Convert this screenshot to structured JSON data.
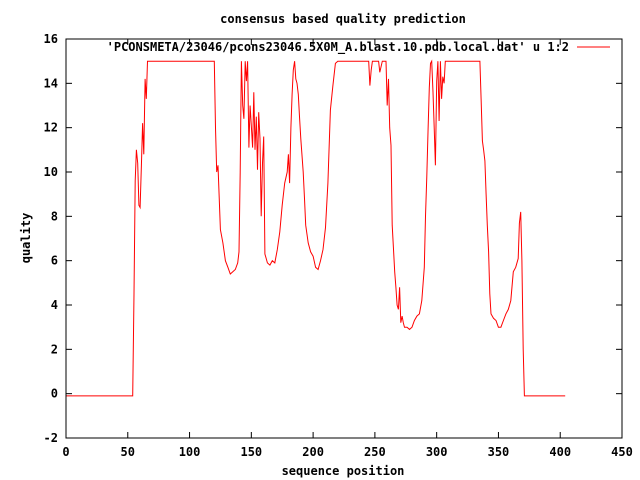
{
  "chart_data": {
    "type": "line",
    "title": "consensus based quality prediction",
    "xlabel": "sequence position",
    "ylabel": "quality",
    "xlim": [
      0,
      450
    ],
    "ylim": [
      -2,
      16
    ],
    "xticks": [
      "0",
      "50",
      "100",
      "150",
      "200",
      "250",
      "300",
      "350",
      "400",
      "450"
    ],
    "yticks": [
      "-2",
      "0",
      "2",
      "4",
      "6",
      "8",
      "10",
      "12",
      "14",
      "16"
    ],
    "grid": false,
    "legend_position": "top-right",
    "series": [
      {
        "name": "'PCONSMETA/23046/pcons23046.5X0M_A.blast.10.pdb.local.dat' u 1:2",
        "color": "#ff0000",
        "points": [
          [
            0,
            -0.1
          ],
          [
            54,
            -0.1
          ],
          [
            55,
            4.5
          ],
          [
            56,
            9.6
          ],
          [
            57,
            11.0
          ],
          [
            58,
            10.4
          ],
          [
            59,
            8.5
          ],
          [
            60,
            8.4
          ],
          [
            61,
            10.3
          ],
          [
            62,
            12.2
          ],
          [
            63,
            10.8
          ],
          [
            64,
            14.2
          ],
          [
            65,
            13.3
          ],
          [
            66,
            15.0
          ],
          [
            120,
            15.0
          ],
          [
            121,
            12.0
          ],
          [
            122,
            10.0
          ],
          [
            123,
            10.3
          ],
          [
            125,
            7.4
          ],
          [
            127,
            6.8
          ],
          [
            129,
            6.0
          ],
          [
            131,
            5.7
          ],
          [
            133,
            5.4
          ],
          [
            135,
            5.5
          ],
          [
            137,
            5.6
          ],
          [
            139,
            5.9
          ],
          [
            140,
            6.4
          ],
          [
            141,
            10.0
          ],
          [
            142,
            15.0
          ],
          [
            143,
            13.0
          ],
          [
            144,
            12.4
          ],
          [
            145,
            15.0
          ],
          [
            146,
            14.1
          ],
          [
            147,
            15.0
          ],
          [
            148,
            11.1
          ],
          [
            149,
            13.0
          ],
          [
            150,
            12.1
          ],
          [
            151,
            11.1
          ],
          [
            152,
            13.6
          ],
          [
            153,
            11.0
          ],
          [
            154,
            12.5
          ],
          [
            155,
            10.1
          ],
          [
            156,
            12.7
          ],
          [
            157,
            11.5
          ],
          [
            158,
            8.0
          ],
          [
            159,
            10.4
          ],
          [
            160,
            11.6
          ],
          [
            161,
            6.3
          ],
          [
            162,
            6.1
          ],
          [
            163,
            5.9
          ],
          [
            165,
            5.8
          ],
          [
            167,
            6.0
          ],
          [
            169,
            5.9
          ],
          [
            171,
            6.5
          ],
          [
            173,
            7.3
          ],
          [
            175,
            8.5
          ],
          [
            177,
            9.5
          ],
          [
            179,
            10.0
          ],
          [
            180,
            10.8
          ],
          [
            181,
            9.5
          ],
          [
            182,
            12.0
          ],
          [
            183,
            13.5
          ],
          [
            184,
            14.6
          ],
          [
            185,
            15.0
          ],
          [
            186,
            14.2
          ],
          [
            187,
            14.0
          ],
          [
            188,
            13.5
          ],
          [
            189,
            12.5
          ],
          [
            190,
            11.5
          ],
          [
            192,
            10.0
          ],
          [
            193,
            8.8
          ],
          [
            194,
            7.6
          ],
          [
            196,
            6.8
          ],
          [
            198,
            6.4
          ],
          [
            200,
            6.2
          ],
          [
            202,
            5.7
          ],
          [
            204,
            5.6
          ],
          [
            206,
            6.0
          ],
          [
            208,
            6.5
          ],
          [
            210,
            7.5
          ],
          [
            212,
            9.5
          ],
          [
            214,
            12.8
          ],
          [
            216,
            13.9
          ],
          [
            218,
            14.9
          ],
          [
            220,
            15.0
          ],
          [
            245,
            15.0
          ],
          [
            246,
            13.9
          ],
          [
            247,
            14.6
          ],
          [
            248,
            15.0
          ],
          [
            253,
            15.0
          ],
          [
            254,
            14.5
          ],
          [
            256,
            15.0
          ],
          [
            259,
            15.0
          ],
          [
            260,
            13.0
          ],
          [
            261,
            14.2
          ],
          [
            262,
            12.0
          ],
          [
            263,
            11.2
          ],
          [
            264,
            7.6
          ],
          [
            265,
            6.6
          ],
          [
            266,
            5.5
          ],
          [
            267,
            4.8
          ],
          [
            268,
            4.0
          ],
          [
            269,
            3.8
          ],
          [
            270,
            4.8
          ],
          [
            271,
            3.2
          ],
          [
            272,
            3.5
          ],
          [
            273,
            3.2
          ],
          [
            274,
            3.0
          ],
          [
            276,
            3.0
          ],
          [
            278,
            2.9
          ],
          [
            280,
            3.0
          ],
          [
            282,
            3.3
          ],
          [
            284,
            3.5
          ],
          [
            286,
            3.6
          ],
          [
            288,
            4.2
          ],
          [
            290,
            5.7
          ],
          [
            291,
            8.0
          ],
          [
            292,
            9.8
          ],
          [
            293,
            11.8
          ],
          [
            294,
            13.8
          ],
          [
            295,
            14.9
          ],
          [
            296,
            15.0
          ],
          [
            297,
            13.6
          ],
          [
            298,
            12.0
          ],
          [
            299,
            10.3
          ],
          [
            300,
            14.1
          ],
          [
            301,
            15.0
          ],
          [
            302,
            12.3
          ],
          [
            303,
            15.0
          ],
          [
            304,
            13.3
          ],
          [
            305,
            14.3
          ],
          [
            306,
            14.0
          ],
          [
            307,
            15.0
          ],
          [
            335,
            15.0
          ],
          [
            336,
            13.3
          ],
          [
            337,
            11.4
          ],
          [
            338,
            11.0
          ],
          [
            339,
            10.5
          ],
          [
            340,
            9.0
          ],
          [
            341,
            7.6
          ],
          [
            342,
            6.4
          ],
          [
            343,
            4.5
          ],
          [
            344,
            3.6
          ],
          [
            346,
            3.4
          ],
          [
            348,
            3.3
          ],
          [
            350,
            3.0
          ],
          [
            352,
            3.0
          ],
          [
            354,
            3.3
          ],
          [
            356,
            3.6
          ],
          [
            358,
            3.8
          ],
          [
            360,
            4.2
          ],
          [
            362,
            5.5
          ],
          [
            364,
            5.7
          ],
          [
            366,
            6.1
          ],
          [
            367,
            7.7
          ],
          [
            368,
            8.2
          ],
          [
            369,
            6.0
          ],
          [
            370,
            2.0
          ],
          [
            371,
            -0.1
          ],
          [
            404,
            -0.1
          ]
        ]
      }
    ]
  }
}
